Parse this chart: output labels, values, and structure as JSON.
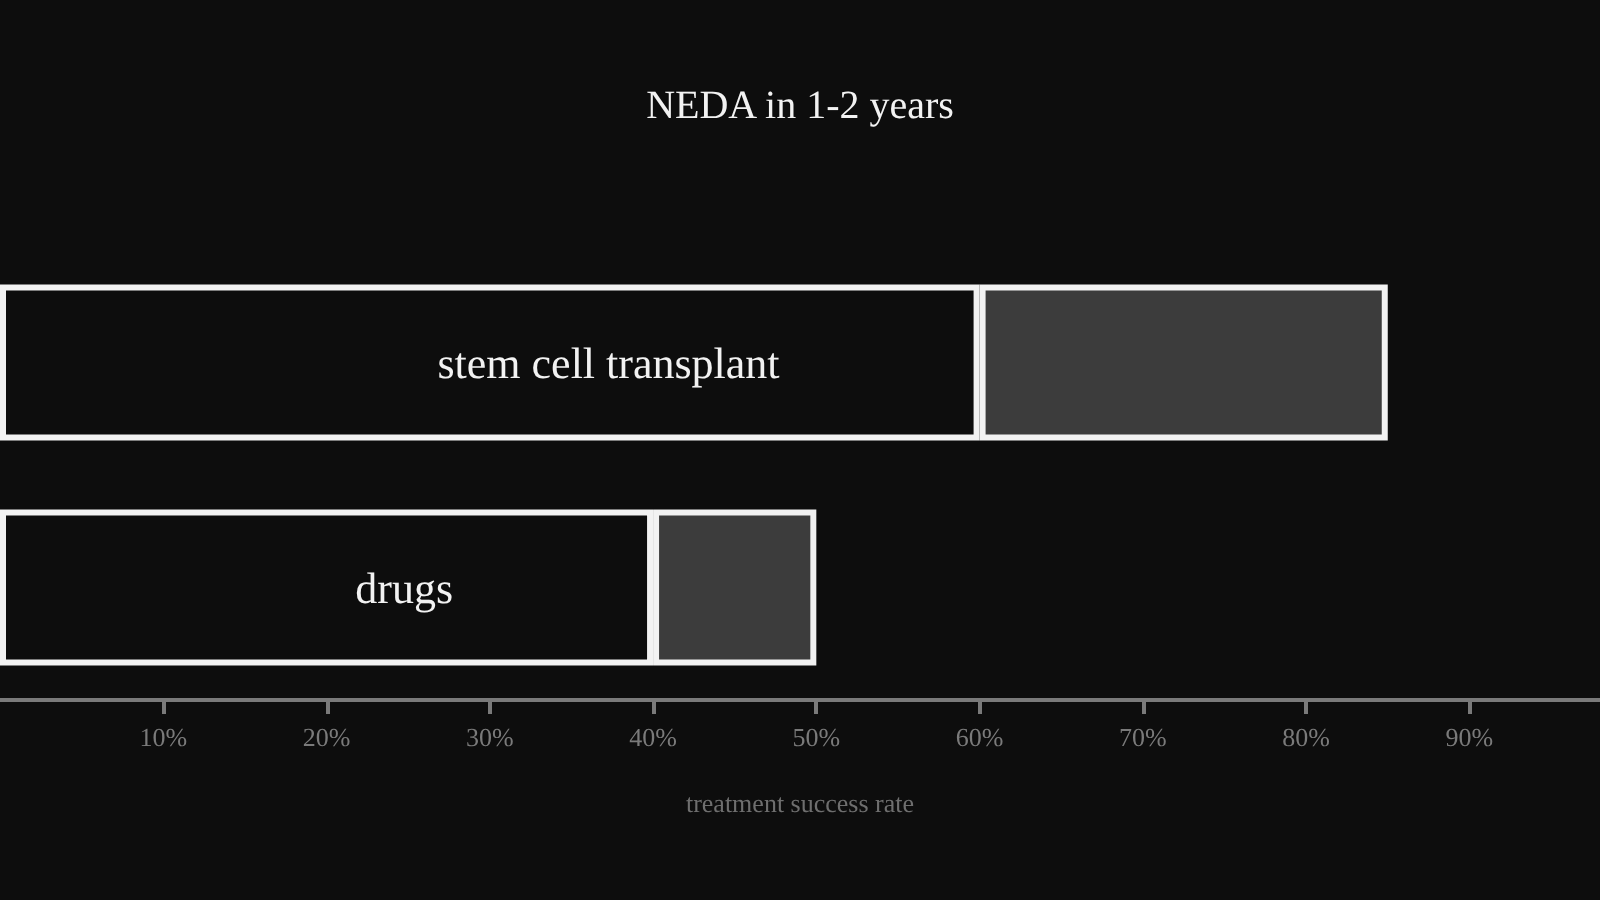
{
  "chart_data": {
    "type": "bar",
    "orientation": "horizontal",
    "stacked": true,
    "title": "NEDA in 1-2 years",
    "xlabel": "treatment success rate",
    "categories": [
      "stem cell transplant",
      "drugs"
    ],
    "series": [
      {
        "color": "#0d0d0d",
        "values": [
          60,
          40
        ]
      },
      {
        "color": "#3c3c3c",
        "values": [
          25,
          10
        ]
      }
    ],
    "xlim": [
      0,
      98
    ],
    "xticks": [
      {
        "value": 10,
        "label": "10%"
      },
      {
        "value": 20,
        "label": "20%"
      },
      {
        "value": 30,
        "label": "30%"
      },
      {
        "value": 40,
        "label": "40%"
      },
      {
        "value": 50,
        "label": "50%"
      },
      {
        "value": 60,
        "label": "60%"
      },
      {
        "value": 70,
        "label": "70%"
      },
      {
        "value": 80,
        "label": "80%"
      },
      {
        "value": 90,
        "label": "90%"
      }
    ],
    "grid": false
  }
}
